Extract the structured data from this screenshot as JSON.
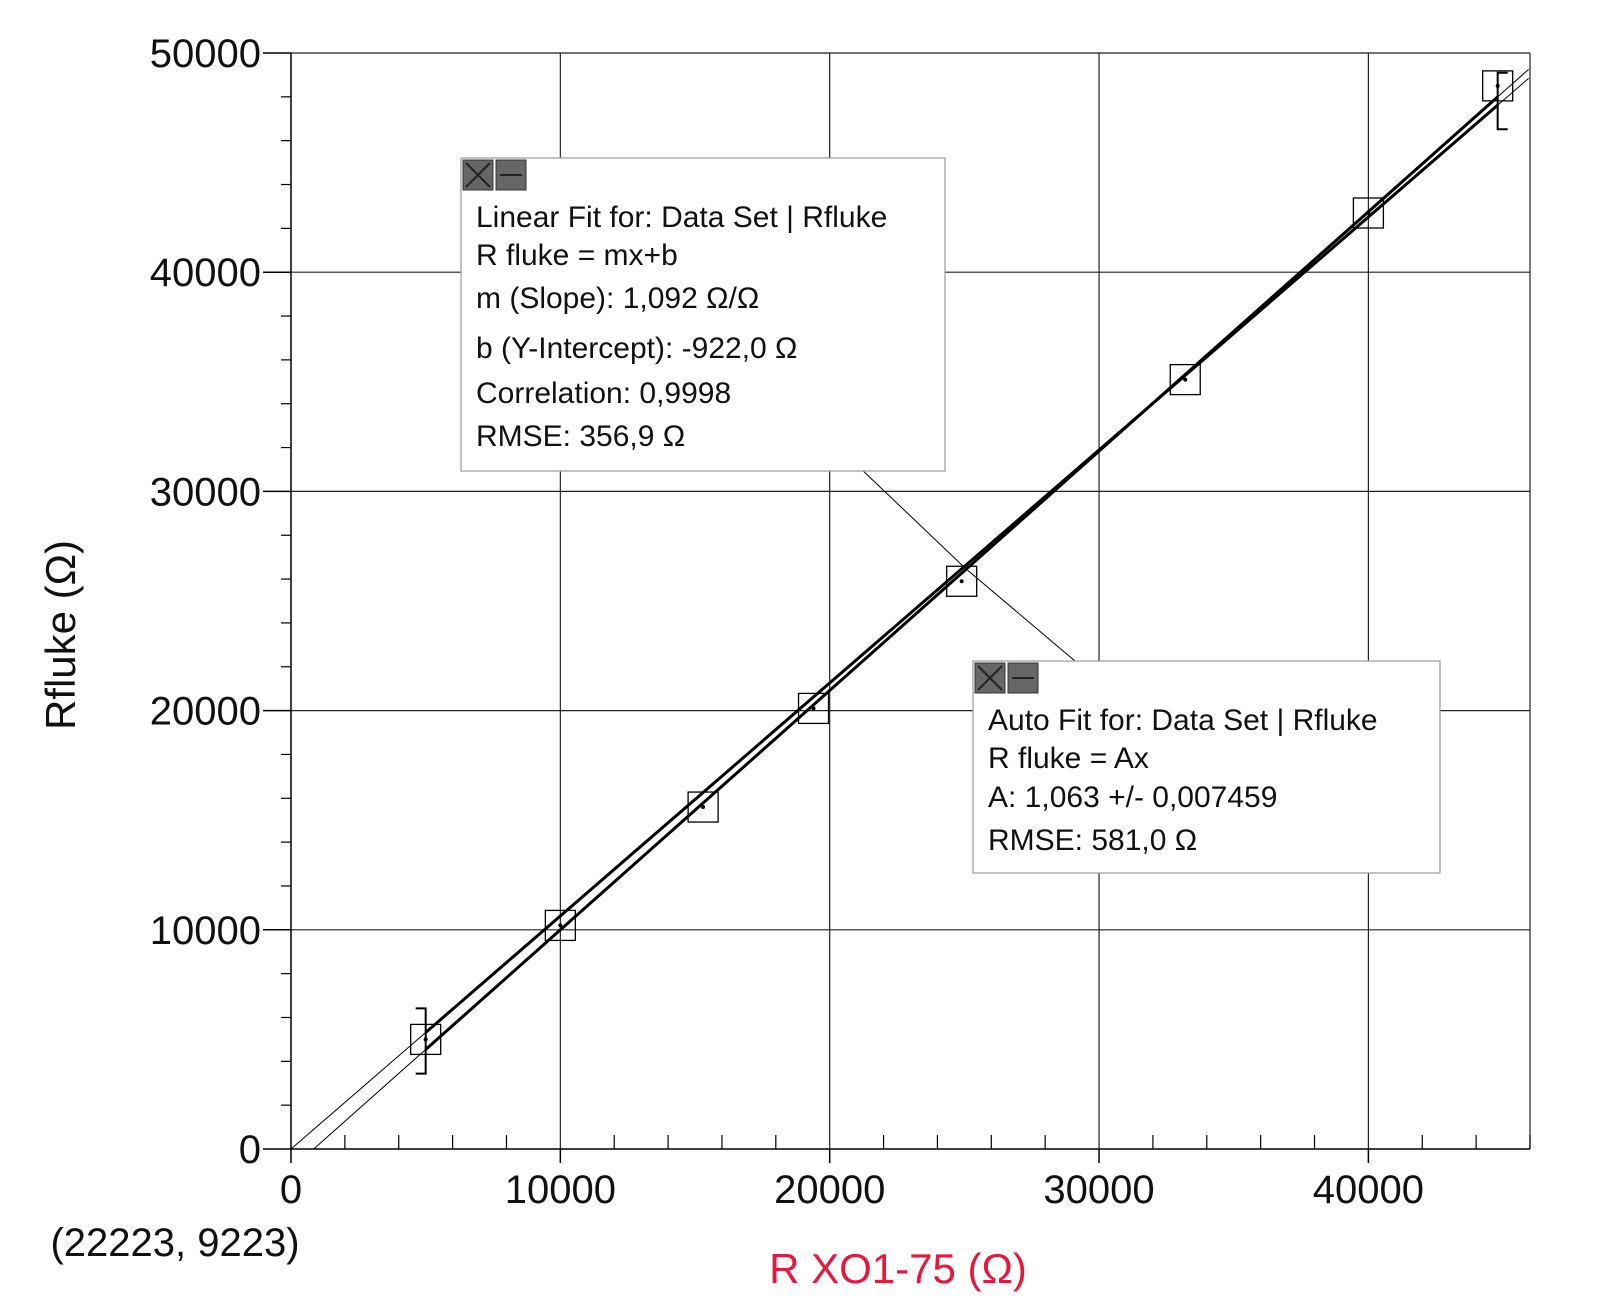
{
  "chart_data": {
    "type": "scatter",
    "xlabel": "R XO1-75 (Ω)",
    "ylabel": "Rfluke (Ω)",
    "xlim": [
      0,
      46000
    ],
    "ylim": [
      0,
      50000
    ],
    "x_ticks": [
      0,
      10000,
      20000,
      30000,
      40000
    ],
    "y_ticks": [
      0,
      10000,
      20000,
      30000,
      40000,
      50000
    ],
    "grid": true,
    "cursor_readout": "(22223, 9223)",
    "series": [
      {
        "x": [
          5000,
          10000,
          15300,
          19400,
          24900,
          33200,
          40000,
          44800
        ],
        "y": [
          5000,
          10200,
          15600,
          20100,
          25900,
          35100,
          42700,
          48500
        ]
      }
    ],
    "fits": [
      {
        "kind": "linear",
        "m": 1.092,
        "b": -922.0,
        "lines": [
          "Linear Fit for: Data Set | Rfluke",
          "R fluke = mx+b",
          "m (Slope): 1,092 Ω/Ω",
          "b (Y-Intercept): -922,0 Ω",
          "Correlation: 0,9998",
          "RMSE: 356,9 Ω"
        ]
      },
      {
        "kind": "proportional",
        "A": 1.063,
        "lines": [
          "Auto Fit for: Data Set | Rfluke",
          "R fluke = Ax",
          "A: 1,063 +/- 0,007459",
          "RMSE: 581,0 Ω"
        ]
      }
    ],
    "colors": {
      "xlabel": "#e8183c",
      "ylabel": "#111111",
      "line": "#000000",
      "grid": "#222222",
      "box_border": "#999999",
      "icon_bg": "#666666"
    }
  }
}
